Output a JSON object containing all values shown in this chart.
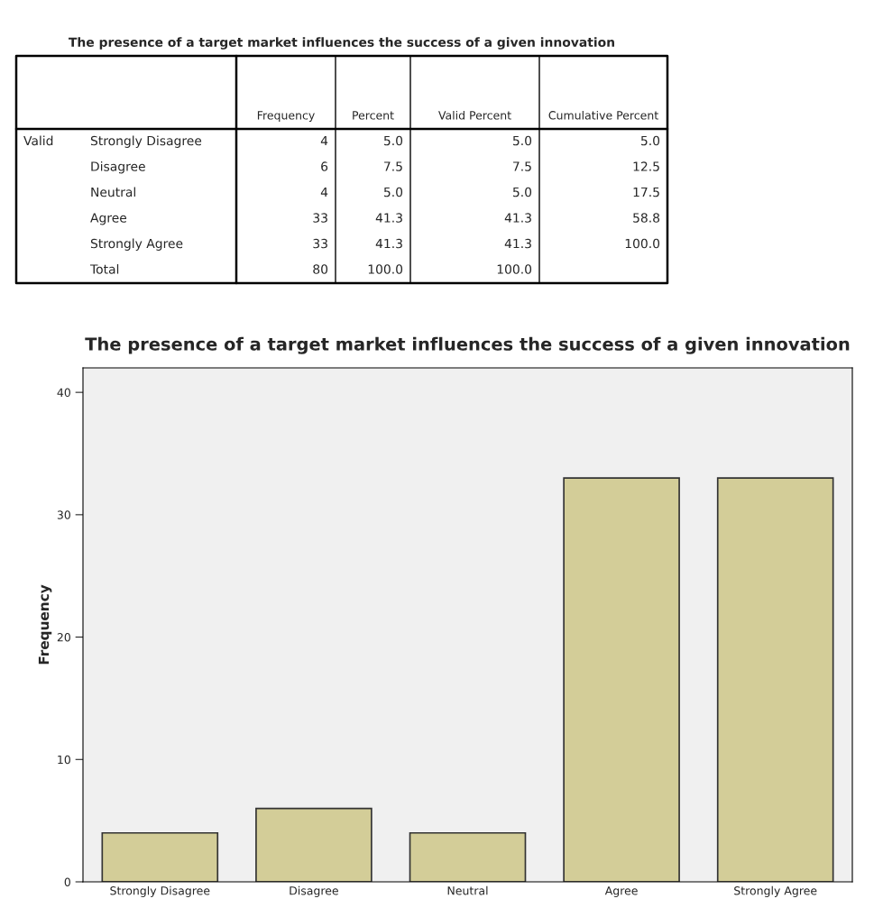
{
  "chart_data": [
    {
      "type": "other",
      "title": "The presence of a target market influences the success of a given innovation",
      "categories": [
        "Strongly Disagree",
        "Disagree",
        "Neutral",
        "Agree",
        "Strongly Agree",
        "Total"
      ],
      "annotations": [
        "Valid"
      ],
      "data_labels": true,
      "series": [
        {
          "name": "Frequency",
          "values": [
            4,
            6,
            4,
            33,
            33,
            80
          ],
          "value_labels": [
            "4",
            "6",
            "4",
            "33",
            "33",
            "80"
          ]
        },
        {
          "name": "Percent",
          "values": [
            5.0,
            7.5,
            5.0,
            41.3,
            41.3,
            100.0
          ],
          "value_labels": [
            "5.0",
            "7.5",
            "5.0",
            "41.3",
            "41.3",
            "100.0"
          ]
        },
        {
          "name": "Valid Percent",
          "values": [
            5.0,
            7.5,
            5.0,
            41.3,
            41.3,
            100.0
          ],
          "value_labels": [
            "5.0",
            "7.5",
            "5.0",
            "41.3",
            "41.3",
            "100.0"
          ]
        },
        {
          "name": "Cumulative Percent",
          "values": [
            5.0,
            12.5,
            17.5,
            58.8,
            100.0,
            null
          ],
          "value_labels": [
            "5.0",
            "12.5",
            "17.5",
            "58.8",
            "100.0",
            null
          ]
        }
      ]
    },
    {
      "type": "bar",
      "title": "The presence of a target market influences the success of a given innovation",
      "ylabel": "Frequency",
      "categories": [
        "Strongly Disagree",
        "Disagree",
        "Neutral",
        "Agree",
        "Strongly Agree"
      ],
      "values": [
        4,
        6,
        4,
        33,
        33
      ],
      "color": "#d3cd98",
      "ylim": [
        0,
        42
      ],
      "yticks": [
        0,
        10,
        20,
        30,
        40
      ],
      "grid": false,
      "legend": false
    }
  ]
}
